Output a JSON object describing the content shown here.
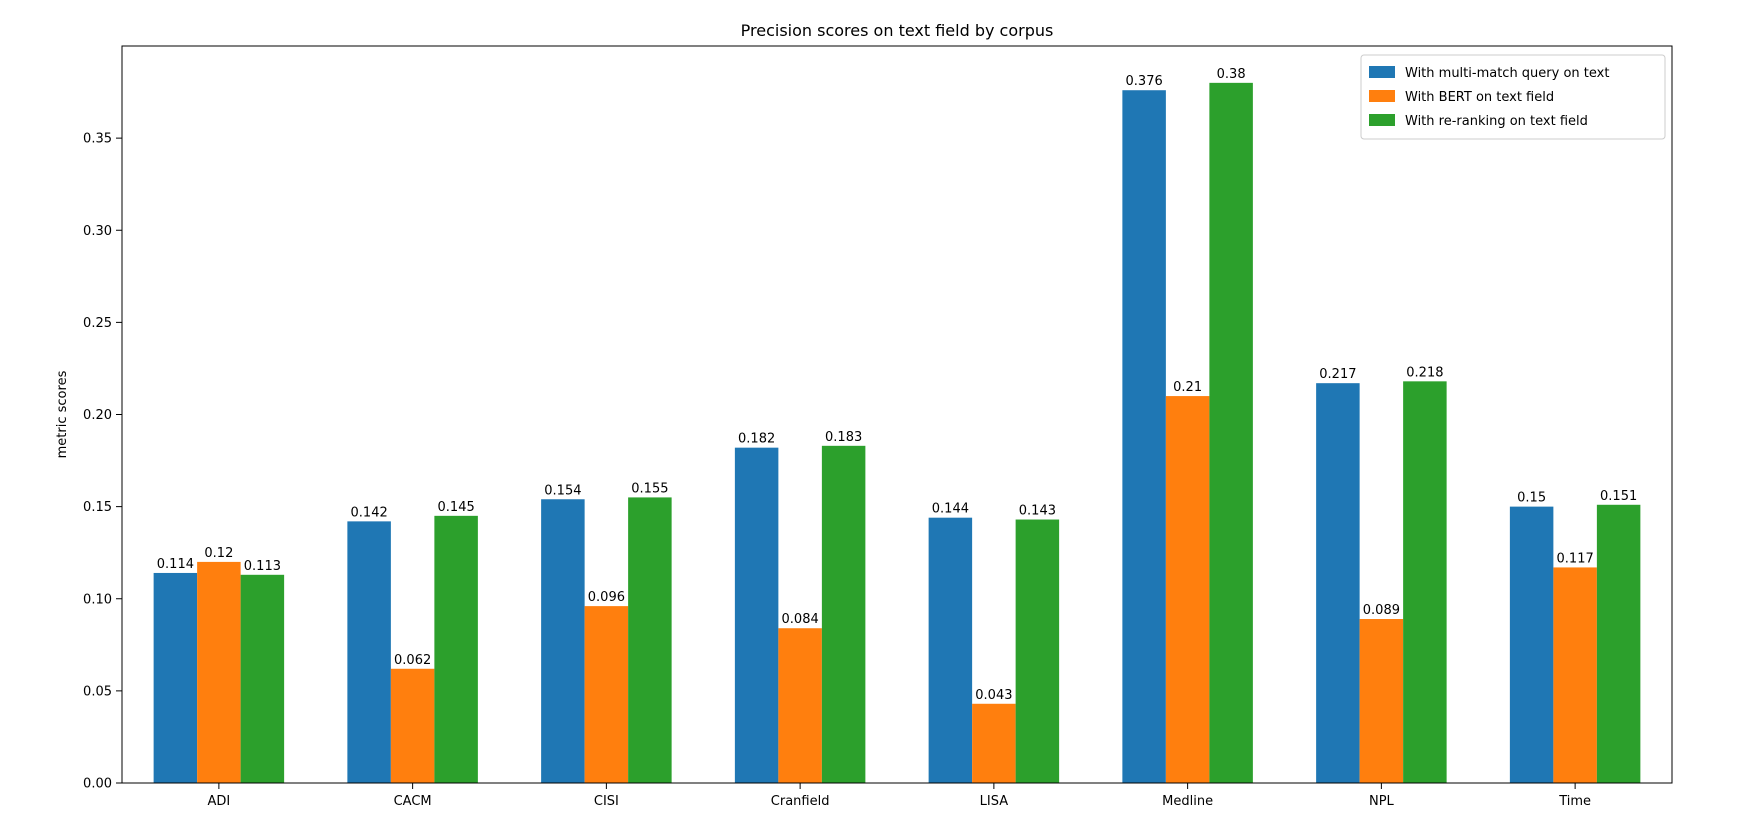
{
  "chart_data": {
    "type": "bar",
    "title": "Precision scores on text field by corpus",
    "xlabel": "",
    "ylabel": "metric scores",
    "ylim": [
      0,
      0.4
    ],
    "yticks": [
      0.0,
      0.05,
      0.1,
      0.15,
      0.2,
      0.25,
      0.3,
      0.35
    ],
    "ytick_labels": [
      "0.00",
      "0.05",
      "0.10",
      "0.15",
      "0.20",
      "0.25",
      "0.30",
      "0.35"
    ],
    "categories": [
      "ADI",
      "CACM",
      "CISI",
      "Cranfield",
      "LISA",
      "Medline",
      "NPL",
      "Time"
    ],
    "grid": false,
    "legend_position": "top-right",
    "series": [
      {
        "name": "With multi-match query on text",
        "color": "#1f77b4",
        "values": [
          0.114,
          0.142,
          0.154,
          0.182,
          0.144,
          0.376,
          0.217,
          0.15
        ],
        "labels": [
          "0.114",
          "0.142",
          "0.154",
          "0.182",
          "0.144",
          "0.376",
          "0.217",
          "0.15"
        ]
      },
      {
        "name": "With BERT on text field",
        "color": "#ff7f0e",
        "values": [
          0.12,
          0.062,
          0.096,
          0.084,
          0.043,
          0.21,
          0.089,
          0.117
        ],
        "labels": [
          "0.12",
          "0.062",
          "0.096",
          "0.084",
          "0.043",
          "0.21",
          "0.089",
          "0.117"
        ]
      },
      {
        "name": "With re-ranking on text field",
        "color": "#2ca02c",
        "values": [
          0.113,
          0.145,
          0.155,
          0.183,
          0.143,
          0.38,
          0.218,
          0.151
        ],
        "labels": [
          "0.113",
          "0.145",
          "0.155",
          "0.183",
          "0.143",
          "0.38",
          "0.218",
          "0.151"
        ]
      }
    ]
  }
}
